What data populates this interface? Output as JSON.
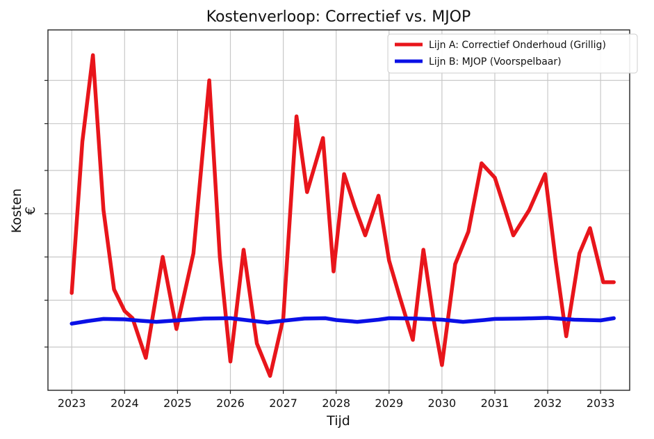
{
  "chart_data": {
    "type": "line",
    "title": "Kostenverloop: Correctief vs. MJOP",
    "xlabel": "Tijd",
    "ylabel": "Kosten",
    "ylabel_unit": "€",
    "xlim": [
      2022.55,
      2033.55
    ],
    "ylim": [
      0,
      100
    ],
    "y_tick_values": [
      12,
      25,
      37,
      49,
      61,
      74,
      86
    ],
    "y_tick_labels_shown": false,
    "x_ticks": [
      2023,
      2024,
      2025,
      2026,
      2027,
      2028,
      2029,
      2030,
      2031,
      2032,
      2033
    ],
    "x_tick_labels": [
      "2023",
      "2024",
      "2025",
      "2026",
      "2027",
      "2028",
      "2029",
      "2030",
      "2031",
      "2032",
      "2033"
    ],
    "grid": true,
    "legend_position": "top-right",
    "series": [
      {
        "name": "Lijn A: Correctief Onderhoud (Grillig)",
        "color": "#e8151b",
        "x": [
          2023.0,
          2023.2,
          2023.4,
          2023.6,
          2023.8,
          2024.0,
          2024.15,
          2024.4,
          2024.72,
          2024.98,
          2025.3,
          2025.6,
          2025.8,
          2026.0,
          2026.25,
          2026.5,
          2026.75,
          2027.0,
          2027.25,
          2027.45,
          2027.75,
          2027.95,
          2028.15,
          2028.35,
          2028.55,
          2028.8,
          2029.0,
          2029.2,
          2029.45,
          2029.65,
          2029.85,
          2030.0,
          2030.25,
          2030.5,
          2030.75,
          2031.0,
          2031.35,
          2031.65,
          2031.95,
          2032.15,
          2032.35,
          2032.6,
          2032.8,
          2033.05,
          2033.25
        ],
        "y": [
          27,
          69,
          93,
          50,
          28,
          22,
          20,
          9,
          37,
          17,
          38,
          86,
          37,
          8,
          39,
          13,
          4,
          20,
          76,
          55,
          70,
          33,
          60,
          51,
          43,
          54,
          36,
          26,
          14,
          39,
          19,
          7,
          35,
          44,
          63,
          59,
          43,
          50,
          60,
          36,
          15,
          38,
          45,
          30,
          30
        ]
      },
      {
        "name": "Lijn B: MJOP (Voorspelbaar)",
        "color": "#0a10e6",
        "x": [
          2023.0,
          2023.3,
          2023.6,
          2024.0,
          2024.3,
          2024.6,
          2025.0,
          2025.5,
          2026.0,
          2026.4,
          2026.7,
          2027.0,
          2027.4,
          2027.8,
          2028.0,
          2028.4,
          2028.8,
          2029.0,
          2029.5,
          2030.0,
          2030.4,
          2030.8,
          2031.0,
          2031.5,
          2032.0,
          2032.5,
          2033.0,
          2033.25
        ],
        "y": [
          18.5,
          19.2,
          19.8,
          19.7,
          19.3,
          19.0,
          19.4,
          19.9,
          20.0,
          19.3,
          18.8,
          19.3,
          19.9,
          20.0,
          19.5,
          19.0,
          19.6,
          20.0,
          19.9,
          19.6,
          19.0,
          19.5,
          19.8,
          19.9,
          20.1,
          19.6,
          19.4,
          20.0
        ]
      }
    ]
  }
}
